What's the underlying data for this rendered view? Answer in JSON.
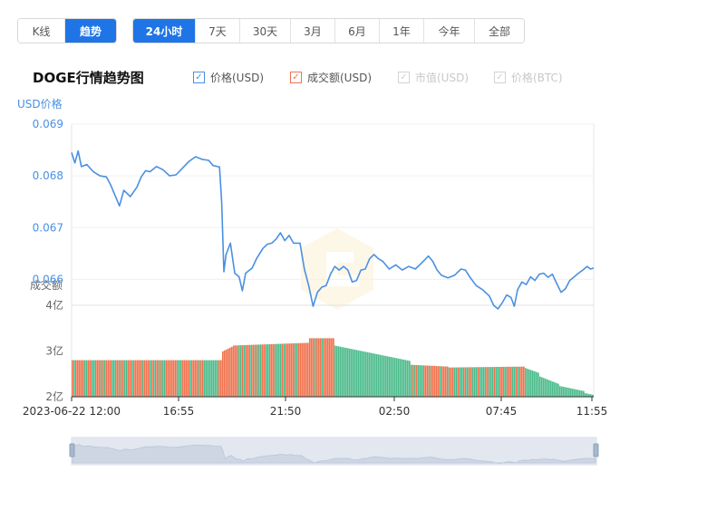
{
  "view_tabs": [
    {
      "label": "K线",
      "active": false
    },
    {
      "label": "趋势",
      "active": true
    }
  ],
  "range_tabs": [
    {
      "label": "24小时",
      "active": true
    },
    {
      "label": "7天",
      "active": false
    },
    {
      "label": "30天",
      "active": false
    },
    {
      "label": "3月",
      "active": false
    },
    {
      "label": "6月",
      "active": false
    },
    {
      "label": "1年",
      "active": false
    },
    {
      "label": "今年",
      "active": false
    },
    {
      "label": "全部",
      "active": false
    }
  ],
  "legend": [
    {
      "label": "价格(USD)",
      "checked": true,
      "enabled": true,
      "color": "#4a90e2"
    },
    {
      "label": "成交额(USD)",
      "checked": true,
      "enabled": true,
      "color": "#f0734f"
    },
    {
      "label": "市值(USD)",
      "checked": true,
      "enabled": false,
      "color": "#cccccc"
    },
    {
      "label": "价格(BTC)",
      "checked": true,
      "enabled": false,
      "color": "#cccccc"
    }
  ],
  "colors": {
    "accent": "#1f74e6",
    "price_line": "#4a90e2",
    "volume_up": "#f0734f",
    "volume_down": "#4cbb8b",
    "axis_text_price": "#4a90e2",
    "axis_text": "#666666"
  },
  "chart_data": {
    "type": "line",
    "title": "DOGE行情趋势图",
    "price_axis_label": "USD价格",
    "volume_axis_label": "成交额",
    "price_ylim": [
      0.0655,
      0.069
    ],
    "price_ticks": [
      "0.069",
      "0.068",
      "0.067",
      "0.066"
    ],
    "volume_ticks": [
      "4亿",
      "3亿",
      "2亿"
    ],
    "volume_tick_values": [
      400000000,
      300000000,
      200000000
    ],
    "volume_ylim": [
      200000000,
      400000000
    ],
    "x_tick_labels": [
      "2023-06-22 12:00",
      "16:55",
      "21:50",
      "02:50",
      "07:45",
      "11:55"
    ],
    "x_tick_hours": [
      0,
      4.9167,
      9.8333,
      14.8333,
      19.75,
      23.9167
    ],
    "x_range_hours": [
      0,
      24
    ],
    "series": [
      {
        "name": "价格(USD)",
        "points": [
          [
            0.0,
            0.06845
          ],
          [
            0.15,
            0.06825
          ],
          [
            0.3,
            0.06848
          ],
          [
            0.45,
            0.06818
          ],
          [
            0.7,
            0.06822
          ],
          [
            1.0,
            0.06808
          ],
          [
            1.3,
            0.068
          ],
          [
            1.6,
            0.06798
          ],
          [
            1.8,
            0.06782
          ],
          [
            2.0,
            0.06762
          ],
          [
            2.2,
            0.06742
          ],
          [
            2.4,
            0.06772
          ],
          [
            2.7,
            0.0676
          ],
          [
            3.0,
            0.06778
          ],
          [
            3.2,
            0.06798
          ],
          [
            3.4,
            0.0681
          ],
          [
            3.6,
            0.06808
          ],
          [
            3.9,
            0.06818
          ],
          [
            4.2,
            0.06812
          ],
          [
            4.5,
            0.068
          ],
          [
            4.8,
            0.06802
          ],
          [
            5.1,
            0.06815
          ],
          [
            5.4,
            0.06828
          ],
          [
            5.7,
            0.06837
          ],
          [
            6.0,
            0.06832
          ],
          [
            6.3,
            0.0683
          ],
          [
            6.5,
            0.0682
          ],
          [
            6.8,
            0.06817
          ],
          [
            6.9,
            0.06748
          ],
          [
            7.0,
            0.06615
          ],
          [
            7.1,
            0.06648
          ],
          [
            7.3,
            0.0667
          ],
          [
            7.5,
            0.06612
          ],
          [
            7.7,
            0.06605
          ],
          [
            7.85,
            0.06578
          ],
          [
            8.0,
            0.06612
          ],
          [
            8.3,
            0.06622
          ],
          [
            8.5,
            0.0664
          ],
          [
            8.8,
            0.0666
          ],
          [
            9.0,
            0.06668
          ],
          [
            9.2,
            0.0667
          ],
          [
            9.4,
            0.06678
          ],
          [
            9.6,
            0.0669
          ],
          [
            9.8,
            0.06675
          ],
          [
            10.0,
            0.06685
          ],
          [
            10.2,
            0.0667
          ],
          [
            10.5,
            0.0667
          ],
          [
            10.7,
            0.0662
          ],
          [
            10.9,
            0.06588
          ],
          [
            11.1,
            0.06548
          ],
          [
            11.3,
            0.06575
          ],
          [
            11.5,
            0.06585
          ],
          [
            11.7,
            0.06588
          ],
          [
            11.9,
            0.0661
          ],
          [
            12.1,
            0.06625
          ],
          [
            12.3,
            0.06618
          ],
          [
            12.5,
            0.06625
          ],
          [
            12.7,
            0.06618
          ],
          [
            12.9,
            0.06595
          ],
          [
            13.1,
            0.06598
          ],
          [
            13.3,
            0.06618
          ],
          [
            13.5,
            0.0662
          ],
          [
            13.7,
            0.0664
          ],
          [
            13.9,
            0.06648
          ],
          [
            14.1,
            0.0664
          ],
          [
            14.3,
            0.06635
          ],
          [
            14.6,
            0.0662
          ],
          [
            14.9,
            0.06628
          ],
          [
            15.2,
            0.06618
          ],
          [
            15.5,
            0.06625
          ],
          [
            15.8,
            0.0662
          ],
          [
            16.1,
            0.06632
          ],
          [
            16.4,
            0.06645
          ],
          [
            16.6,
            0.06635
          ],
          [
            16.8,
            0.06618
          ],
          [
            17.0,
            0.06608
          ],
          [
            17.3,
            0.06603
          ],
          [
            17.6,
            0.06608
          ],
          [
            17.9,
            0.0662
          ],
          [
            18.1,
            0.06618
          ],
          [
            18.3,
            0.06605
          ],
          [
            18.6,
            0.06588
          ],
          [
            18.9,
            0.0658
          ],
          [
            19.2,
            0.06568
          ],
          [
            19.4,
            0.0655
          ],
          [
            19.6,
            0.06543
          ],
          [
            19.8,
            0.06555
          ],
          [
            20.0,
            0.0657
          ],
          [
            20.2,
            0.06565
          ],
          [
            20.35,
            0.06548
          ],
          [
            20.5,
            0.0658
          ],
          [
            20.7,
            0.06595
          ],
          [
            20.9,
            0.0659
          ],
          [
            21.1,
            0.06605
          ],
          [
            21.3,
            0.06598
          ],
          [
            21.5,
            0.0661
          ],
          [
            21.7,
            0.06612
          ],
          [
            21.9,
            0.06604
          ],
          [
            22.1,
            0.0661
          ],
          [
            22.3,
            0.06592
          ],
          [
            22.5,
            0.06575
          ],
          [
            22.7,
            0.06582
          ],
          [
            22.9,
            0.06598
          ],
          [
            23.1,
            0.06605
          ],
          [
            23.3,
            0.06612
          ],
          [
            23.5,
            0.06618
          ],
          [
            23.7,
            0.06625
          ],
          [
            23.85,
            0.0662
          ],
          [
            24.0,
            0.06622
          ]
        ]
      },
      {
        "name": "成交额(USD)",
        "values_unit": "亿",
        "segments": [
          {
            "from": 0.0,
            "to": 6.9,
            "start": 2.8,
            "end": 2.8,
            "color": "mixed"
          },
          {
            "from": 6.9,
            "to": 7.4,
            "start": 2.98,
            "end": 3.1,
            "color": "up"
          },
          {
            "from": 7.4,
            "to": 10.9,
            "start": 3.12,
            "end": 3.18,
            "color": "mixed"
          },
          {
            "from": 10.9,
            "to": 12.1,
            "start": 3.28,
            "end": 3.28,
            "color": "mixed"
          },
          {
            "from": 12.1,
            "to": 15.6,
            "start": 3.12,
            "end": 2.78,
            "color": "down"
          },
          {
            "from": 15.6,
            "to": 17.3,
            "start": 2.7,
            "end": 2.66,
            "color": "mixed"
          },
          {
            "from": 17.3,
            "to": 20.8,
            "start": 2.64,
            "end": 2.66,
            "color": "mixed"
          },
          {
            "from": 20.8,
            "to": 21.5,
            "start": 2.64,
            "end": 2.52,
            "color": "down"
          },
          {
            "from": 21.5,
            "to": 22.4,
            "start": 2.45,
            "end": 2.28,
            "color": "down"
          },
          {
            "from": 22.4,
            "to": 23.6,
            "start": 2.24,
            "end": 2.12,
            "color": "down"
          },
          {
            "from": 23.6,
            "to": 24.0,
            "start": 2.08,
            "end": 2.04,
            "color": "down"
          }
        ]
      }
    ]
  }
}
